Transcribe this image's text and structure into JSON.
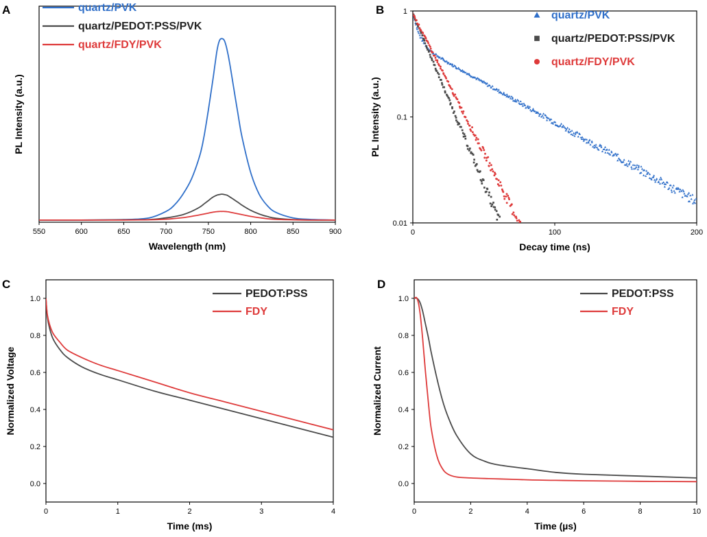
{
  "figure": {
    "colors": {
      "blue": "#2f6fc9",
      "gray": "#4a4a4a",
      "red": "#de3a3a",
      "axis": "#000000"
    }
  },
  "chart_data": [
    {
      "panel": "A",
      "type": "line",
      "xlabel": "Wavelength (nm)",
      "ylabel": "PL Intensity (a.u.)",
      "xlim": [
        550,
        900
      ],
      "ylim": [
        0,
        1.0
      ],
      "xticks": [
        550,
        600,
        650,
        700,
        750,
        800,
        850,
        900
      ],
      "x_tick_labels": [
        "550",
        "600",
        "650",
        "700",
        "750",
        "800",
        "850",
        "900"
      ],
      "yticks_shown": false,
      "legend": "top-left",
      "x": [
        550,
        600,
        650,
        680,
        700,
        710,
        720,
        730,
        740,
        745,
        750,
        755,
        760,
        763,
        766,
        769,
        772,
        775,
        780,
        785,
        790,
        800,
        810,
        820,
        830,
        850,
        870,
        900
      ],
      "series": [
        {
          "name": "quartz/PVK",
          "color": "blue",
          "values": [
            0.01,
            0.01,
            0.012,
            0.02,
            0.05,
            0.08,
            0.13,
            0.2,
            0.31,
            0.4,
            0.52,
            0.65,
            0.79,
            0.84,
            0.85,
            0.84,
            0.8,
            0.74,
            0.62,
            0.5,
            0.39,
            0.23,
            0.13,
            0.075,
            0.045,
            0.02,
            0.013,
            0.01
          ]
        },
        {
          "name": "quartz/PEDOT:PSS/PVK",
          "color": "gray",
          "values": [
            0.01,
            0.01,
            0.011,
            0.012,
            0.02,
            0.026,
            0.035,
            0.05,
            0.07,
            0.085,
            0.1,
            0.115,
            0.125,
            0.128,
            0.13,
            0.128,
            0.125,
            0.118,
            0.105,
            0.092,
            0.078,
            0.055,
            0.038,
            0.026,
            0.018,
            0.012,
            0.01,
            0.01
          ]
        },
        {
          "name": "quartz/FDY/PVK",
          "color": "red",
          "values": [
            0.01,
            0.01,
            0.01,
            0.011,
            0.014,
            0.017,
            0.021,
            0.027,
            0.034,
            0.038,
            0.042,
            0.046,
            0.049,
            0.05,
            0.05,
            0.05,
            0.049,
            0.047,
            0.043,
            0.039,
            0.035,
            0.027,
            0.021,
            0.016,
            0.013,
            0.011,
            0.01,
            0.01
          ]
        }
      ]
    },
    {
      "panel": "B",
      "type": "scatter",
      "xlabel": "Decay time (ns)",
      "ylabel": "PL Intensity (a.u.)",
      "xlim": [
        0,
        200
      ],
      "ylim": [
        0.01,
        1
      ],
      "yscale": "log",
      "xticks": [
        0,
        100,
        200
      ],
      "x_tick_labels": [
        "0",
        "100",
        "200"
      ],
      "yticks": [
        0.01,
        0.1,
        1
      ],
      "y_tick_labels": [
        "0.01",
        "0.1",
        "1"
      ],
      "legend": "top-right",
      "series": [
        {
          "name": "quartz/PVK",
          "color": "blue",
          "marker": "triangle",
          "tau1": 4,
          "a1": 0.45,
          "tau2": 58,
          "a2": 0.5,
          "tmax": 200
        },
        {
          "name": "quartz/PEDOT:PSS/PVK",
          "color": "gray",
          "marker": "square",
          "tau1": 13.5,
          "a1": 0.95,
          "tau2": 13.5,
          "a2": 0,
          "tmax": 66
        },
        {
          "name": "quartz/FDY/PVK",
          "color": "red",
          "marker": "circle",
          "tau1": 16.5,
          "a1": 0.95,
          "tau2": 16.5,
          "a2": 0,
          "tmax": 81
        }
      ]
    },
    {
      "panel": "C",
      "type": "line",
      "xlabel": "Time (ms)",
      "ylabel": "Normalized Voltage",
      "xlim": [
        0,
        4
      ],
      "ylim": [
        -0.1,
        1.1
      ],
      "xticks": [
        0,
        1,
        2,
        3,
        4
      ],
      "x_tick_labels": [
        "0",
        "1",
        "2",
        "3",
        "4"
      ],
      "yticks": [
        0.0,
        0.2,
        0.4,
        0.6,
        0.8,
        1.0
      ],
      "y_tick_labels": [
        "0.0",
        "0.2",
        "0.4",
        "0.6",
        "0.8",
        "1.0"
      ],
      "legend": "top-right",
      "x": [
        0,
        0.02,
        0.05,
        0.1,
        0.2,
        0.3,
        0.5,
        0.75,
        1.0,
        1.5,
        2.0,
        2.5,
        3.0,
        3.5,
        4.0
      ],
      "series": [
        {
          "name": "PEDOT:PSS",
          "color": "gray",
          "values": [
            1.0,
            0.9,
            0.84,
            0.78,
            0.72,
            0.68,
            0.63,
            0.59,
            0.56,
            0.5,
            0.45,
            0.4,
            0.35,
            0.3,
            0.25
          ]
        },
        {
          "name": "FDY",
          "color": "red",
          "values": [
            1.0,
            0.91,
            0.86,
            0.81,
            0.76,
            0.72,
            0.68,
            0.64,
            0.61,
            0.55,
            0.49,
            0.44,
            0.39,
            0.34,
            0.29
          ]
        }
      ]
    },
    {
      "panel": "D",
      "type": "line",
      "xlabel": "Time (µs)",
      "ylabel": "Normalized Current",
      "xlim": [
        0,
        10
      ],
      "ylim": [
        -0.1,
        1.1
      ],
      "xticks": [
        0,
        2,
        4,
        6,
        8,
        10
      ],
      "x_tick_labels": [
        "0",
        "2",
        "4",
        "6",
        "8",
        "10"
      ],
      "yticks": [
        0.0,
        0.2,
        0.4,
        0.6,
        0.8,
        1.0
      ],
      "y_tick_labels": [
        "0.0",
        "0.2",
        "0.4",
        "0.6",
        "0.8",
        "1.0"
      ],
      "legend": "top-right",
      "x": [
        0,
        0.1,
        0.2,
        0.3,
        0.4,
        0.5,
        0.6,
        0.8,
        1.0,
        1.2,
        1.5,
        2.0,
        2.5,
        3.0,
        4.0,
        5.0,
        6.0,
        8.0,
        10.0
      ],
      "series": [
        {
          "name": "PEDOT:PSS",
          "color": "gray",
          "values": [
            1.0,
            1.0,
            0.98,
            0.93,
            0.86,
            0.79,
            0.71,
            0.57,
            0.45,
            0.36,
            0.26,
            0.16,
            0.12,
            0.1,
            0.08,
            0.06,
            0.05,
            0.04,
            0.03
          ]
        },
        {
          "name": "FDY",
          "color": "red",
          "values": [
            1.0,
            1.0,
            0.93,
            0.78,
            0.6,
            0.44,
            0.3,
            0.15,
            0.08,
            0.05,
            0.035,
            0.03,
            0.027,
            0.025,
            0.02,
            0.017,
            0.015,
            0.012,
            0.01
          ]
        }
      ]
    }
  ]
}
